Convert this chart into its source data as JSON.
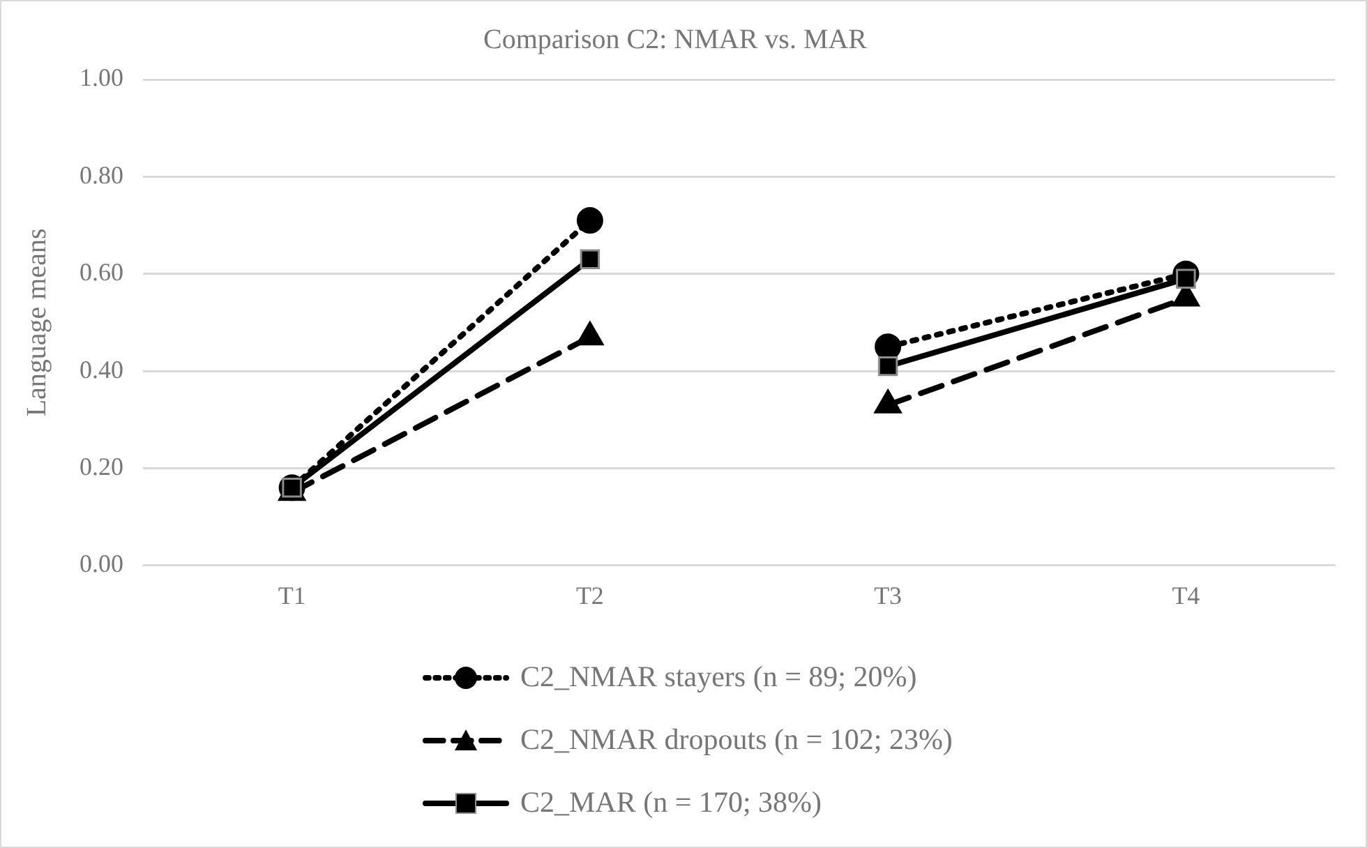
{
  "chart_data": {
    "type": "line",
    "title": "Comparison C2: NMAR vs. MAR",
    "ylabel": "Language means",
    "categories": [
      "T1",
      "T2",
      "T3",
      "T4"
    ],
    "series": [
      {
        "name": "C2_NMAR stayers (n = 89; 20%)",
        "color": "#000000",
        "marker": "circle",
        "line_style": "dotted",
        "values": [
          0.16,
          0.71,
          null,
          null
        ]
      },
      {
        "name": "C2_NMAR dropouts (n = 102; 23%)",
        "color": "#000000",
        "marker": "triangle",
        "line_style": "dashed",
        "values": [
          0.15,
          0.47,
          null,
          null
        ]
      },
      {
        "name": "C2_MAR (n = 170; 38%)",
        "color": "#000000",
        "marker": "square",
        "line_style": "solid",
        "values": [
          0.16,
          0.63,
          null,
          null
        ]
      },
      {
        "color": "#000000",
        "marker": "circle",
        "line_style": "dotted",
        "values": [
          null,
          null,
          0.45,
          0.6
        ]
      },
      {
        "color": "#000000",
        "marker": "triangle",
        "line_style": "dashed",
        "values": [
          null,
          null,
          0.33,
          0.55
        ]
      },
      {
        "color": "#000000",
        "marker": "square",
        "line_style": "solid",
        "values": [
          null,
          null,
          0.41,
          0.59
        ]
      }
    ],
    "ylim": [
      0,
      1
    ],
    "yticks": [
      {
        "value": 0,
        "label": "0.00"
      },
      {
        "value": 0.2,
        "label": "0.20"
      },
      {
        "value": 0.4,
        "label": "0.40"
      },
      {
        "value": 0.6,
        "label": "0.60"
      },
      {
        "value": 0.8,
        "label": "0.80"
      },
      {
        "value": 1,
        "label": "1.00"
      }
    ],
    "grid": "y",
    "legend": "bottom"
  }
}
